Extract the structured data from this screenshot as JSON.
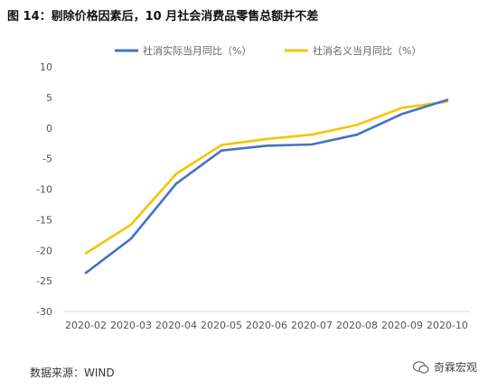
{
  "page": {
    "title": "图 14：剔除价格因素后，10 月社会消费品零售总额并不差"
  },
  "source": "数据来源：WIND",
  "watermark": "奇霖宏观",
  "chart_data": {
    "type": "line",
    "categories": [
      "2020-02",
      "2020-03",
      "2020-04",
      "2020-05",
      "2020-06",
      "2020-07",
      "2020-08",
      "2020-09",
      "2020-10"
    ],
    "series": [
      {
        "name": "社消实际当月同比（%）",
        "color": "#4472C4",
        "values": [
          -23.7,
          -18.1,
          -9.1,
          -3.7,
          -2.9,
          -2.7,
          -1.1,
          2.3,
          4.6
        ]
      },
      {
        "name": "社消名义当月同比（%）",
        "color": "#F5C400",
        "values": [
          -20.5,
          -15.8,
          -7.5,
          -2.8,
          -1.8,
          -1.1,
          0.5,
          3.3,
          4.3
        ]
      }
    ],
    "ylim": [
      -30,
      10
    ],
    "yticks": [
      10,
      5,
      0,
      -5,
      -10,
      -15,
      -20,
      -25,
      -30
    ],
    "grid": false,
    "legend": "top"
  }
}
